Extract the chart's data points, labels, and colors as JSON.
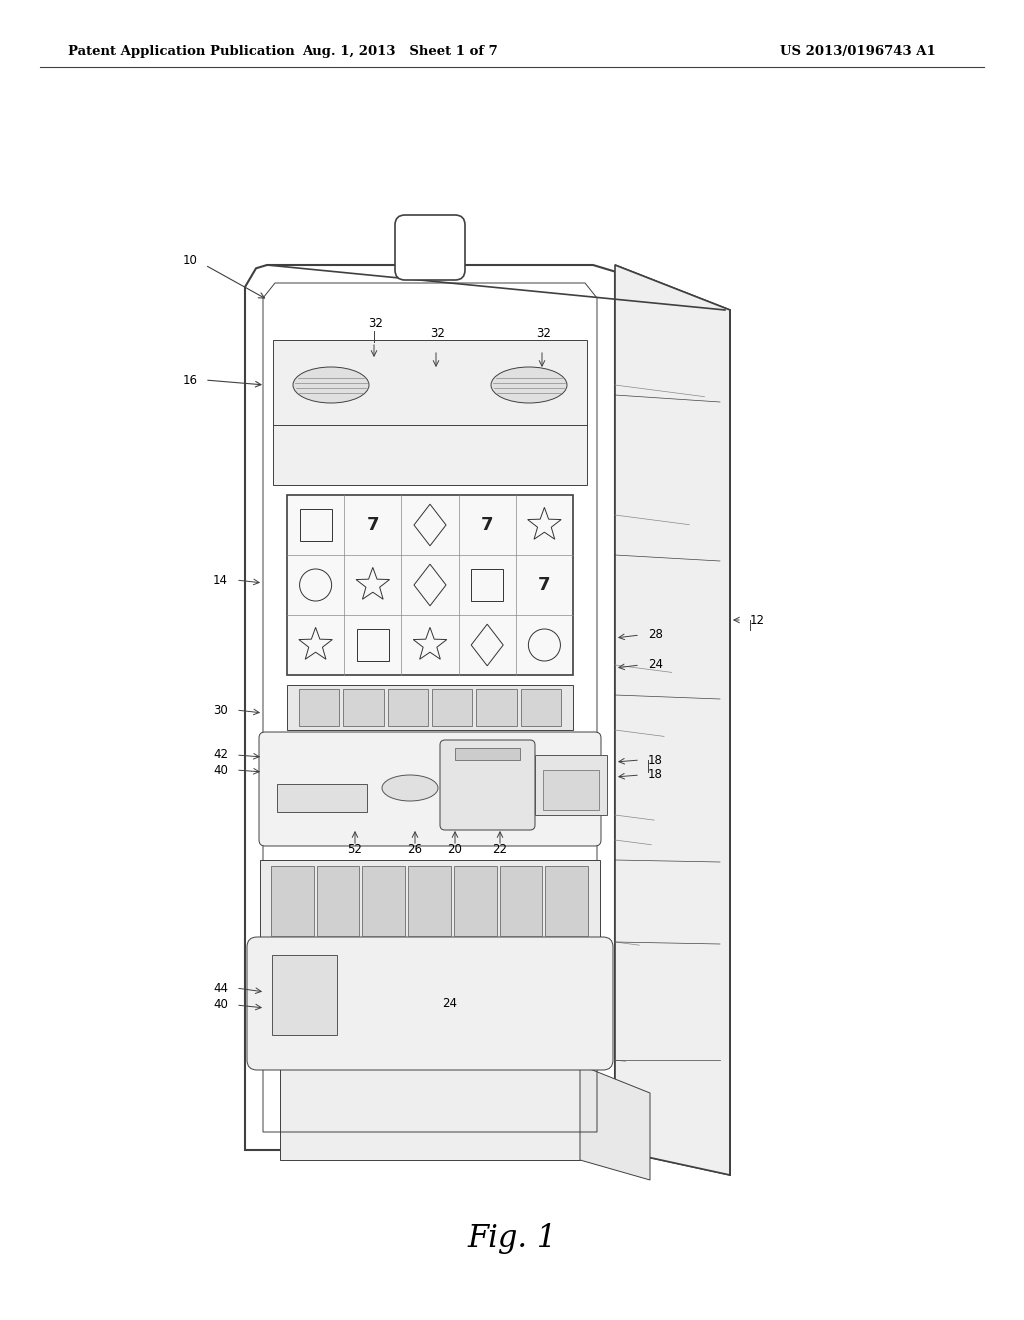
{
  "title_left": "Patent Application Publication",
  "title_mid": "Aug. 1, 2013   Sheet 1 of 7",
  "title_right": "US 2013/0196743 A1",
  "fig_label": "Fig. 1",
  "bg_color": "#ffffff",
  "lc": "#404040",
  "lc_thin": "#606060",
  "gray_fill": "#e8e8e8",
  "light_fill": "#f2f2f2"
}
